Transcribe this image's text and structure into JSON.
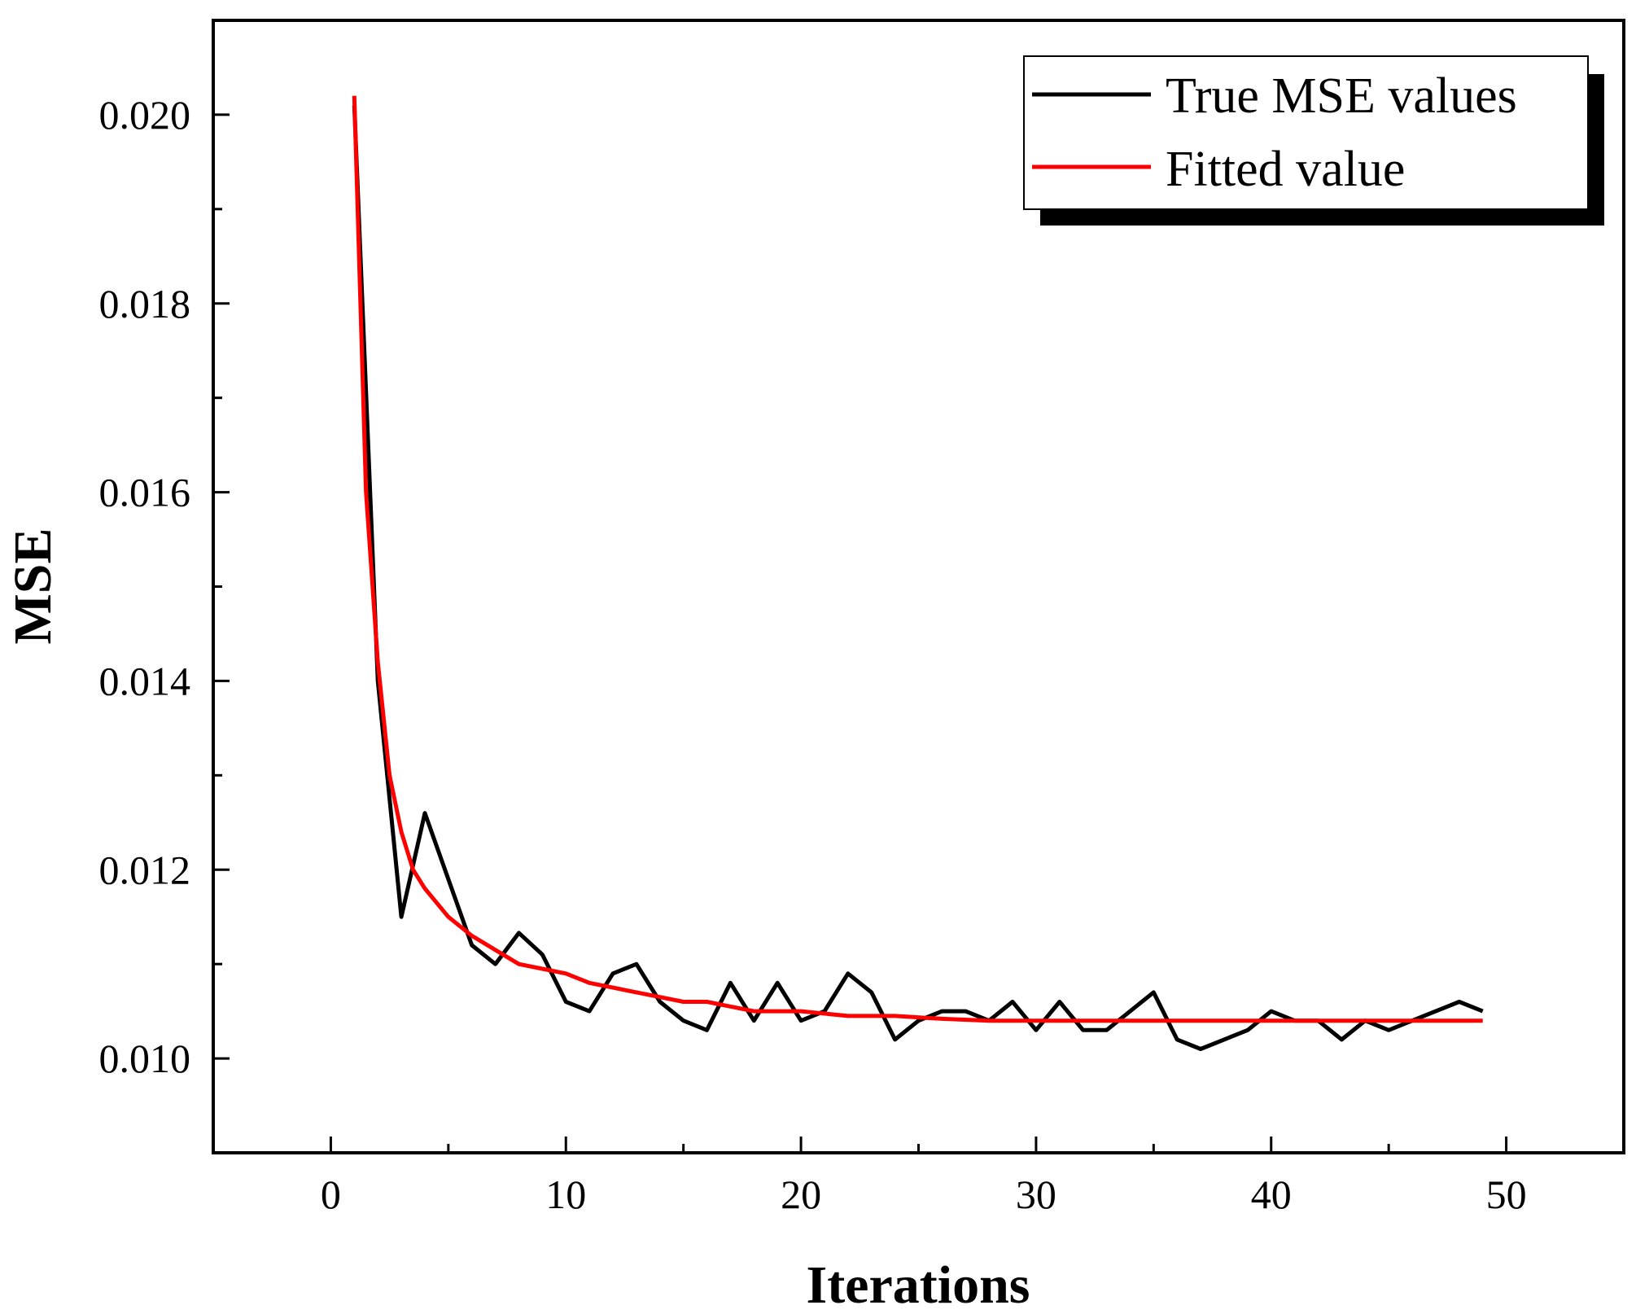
{
  "chart_data": {
    "type": "line",
    "title": "",
    "xlabel": "Iterations",
    "ylabel": "MSE",
    "xlim": [
      -5,
      55
    ],
    "ylim": [
      0.009,
      0.021
    ],
    "xticks": [
      0,
      10,
      20,
      30,
      40,
      50
    ],
    "xtick_labels": [
      "0",
      "10",
      "20",
      "30",
      "40",
      "50"
    ],
    "yticks": [
      0.01,
      0.012,
      0.014,
      0.016,
      0.018,
      0.02
    ],
    "ytick_labels": [
      "0.010",
      "0.012",
      "0.014",
      "0.016",
      "0.018",
      "0.020"
    ],
    "legend_position": "top-right",
    "grid": false,
    "series": [
      {
        "name": "True MSE values",
        "color": "#000000",
        "x": [
          1,
          2,
          3,
          4,
          5,
          6,
          7,
          8,
          9,
          10,
          11,
          12,
          13,
          14,
          15,
          16,
          17,
          18,
          19,
          20,
          21,
          22,
          23,
          24,
          25,
          26,
          27,
          28,
          29,
          30,
          31,
          32,
          33,
          34,
          35,
          36,
          37,
          38,
          39,
          40,
          41,
          42,
          43,
          44,
          45,
          46,
          47,
          48,
          49
        ],
        "values": [
          0.0201,
          0.014,
          0.0115,
          0.0126,
          0.0119,
          0.0112,
          0.011,
          0.01133,
          0.0111,
          0.0106,
          0.0105,
          0.0109,
          0.011,
          0.0106,
          0.0104,
          0.0103,
          0.0108,
          0.0104,
          0.0108,
          0.0104,
          0.0105,
          0.0109,
          0.0107,
          0.0102,
          0.0104,
          0.0105,
          0.0105,
          0.0104,
          0.0106,
          0.0103,
          0.0106,
          0.0103,
          0.0103,
          0.0105,
          0.0107,
          0.0102,
          0.0101,
          0.0102,
          0.0103,
          0.0105,
          0.0104,
          0.0104,
          0.0102,
          0.0104,
          0.0103,
          0.0104,
          0.0105,
          0.0106,
          0.0105
        ]
      },
      {
        "name": "Fitted value",
        "color": "#ff0000",
        "x": [
          1,
          1.5,
          2,
          2.5,
          3,
          3.5,
          4,
          5,
          6,
          7,
          8,
          9,
          10,
          11,
          12,
          13,
          14,
          15,
          16,
          17,
          18,
          19,
          20,
          22,
          24,
          26,
          28,
          30,
          32,
          34,
          36,
          38,
          40,
          42,
          44,
          46,
          48,
          49
        ],
        "values": [
          0.0202,
          0.016,
          0.0142,
          0.013,
          0.0124,
          0.012,
          0.0118,
          0.0115,
          0.0113,
          0.01115,
          0.011,
          0.01095,
          0.0109,
          0.0108,
          0.01075,
          0.0107,
          0.01065,
          0.0106,
          0.0106,
          0.01055,
          0.0105,
          0.0105,
          0.0105,
          0.01045,
          0.01045,
          0.01042,
          0.0104,
          0.0104,
          0.0104,
          0.0104,
          0.0104,
          0.0104,
          0.0104,
          0.0104,
          0.0104,
          0.0104,
          0.0104,
          0.0104
        ]
      }
    ]
  }
}
